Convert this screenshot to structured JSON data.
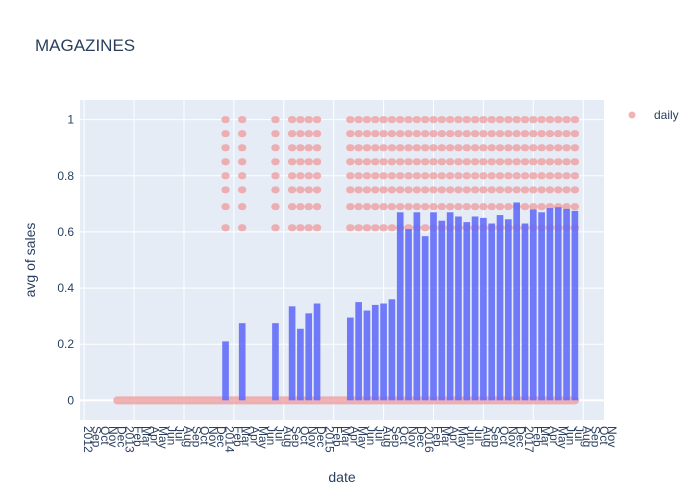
{
  "chart_data": {
    "type": "bar",
    "title": "MAGAZINES",
    "xlabel": "date",
    "ylabel": "avg of sales",
    "ylim": [
      -0.07,
      1.07
    ],
    "yticks": [
      0,
      0.2,
      0.4,
      0.6,
      0.8,
      1
    ],
    "ytick_labels": [
      "0",
      "0.2",
      "0.4",
      "0.6",
      "0.8",
      "1"
    ],
    "xlim_month_index": [
      -4.5,
      58.5
    ],
    "x_tick_labels": [
      "2012",
      "Sep",
      "Oct",
      "Nov",
      "Dec",
      "2013",
      "Feb",
      "Mar",
      "Apr",
      "May",
      "Jun",
      "Jul",
      "Aug",
      "Sep",
      "Oct",
      "Nov",
      "Dec",
      "2014",
      "Feb",
      "Mar",
      "Apr",
      "May",
      "Jun",
      "Jul",
      "Aug",
      "Sep",
      "Oct",
      "Nov",
      "Dec",
      "2015",
      "Feb",
      "Mar",
      "Apr",
      "May",
      "Jun",
      "Jul",
      "Aug",
      "Sep",
      "Oct",
      "Nov",
      "Dec",
      "2016",
      "Feb",
      "Mar",
      "Apr",
      "May",
      "Jun",
      "Jul",
      "Aug",
      "Sep",
      "Oct",
      "Nov",
      "Dec",
      "2017",
      "Feb",
      "Mar",
      "Apr",
      "May",
      "Jun",
      "Jul",
      "Aug",
      "Sep",
      "Oct",
      "Nov"
    ],
    "legend": {
      "position": "right",
      "entries": [
        "daily"
      ]
    },
    "colors": {
      "bar": "#636efa",
      "daily": "#ef9a9a",
      "plot_bg": "#e5ecf6",
      "grid": "#ffffff",
      "text": "#2a3f5f"
    },
    "monthly_bars": {
      "months": [
        "2013-01",
        "2013-02",
        "2013-03",
        "2013-04",
        "2013-05",
        "2013-06",
        "2013-07",
        "2013-08",
        "2013-09",
        "2013-10",
        "2013-11",
        "2013-12",
        "2014-01",
        "2014-02",
        "2014-03",
        "2014-04",
        "2014-05",
        "2014-06",
        "2014-07",
        "2014-08",
        "2014-09",
        "2014-10",
        "2014-11",
        "2014-12",
        "2015-01",
        "2015-02",
        "2015-03",
        "2015-04",
        "2015-05",
        "2015-06",
        "2015-07",
        "2015-08",
        "2015-09",
        "2015-10",
        "2015-11",
        "2015-12",
        "2016-01",
        "2016-02",
        "2016-03",
        "2016-04",
        "2016-05",
        "2016-06",
        "2016-07",
        "2016-08",
        "2016-09",
        "2016-10",
        "2016-11",
        "2016-12",
        "2017-01",
        "2017-02",
        "2017-03",
        "2017-04",
        "2017-05",
        "2017-06",
        "2017-07",
        "2017-08"
      ],
      "values": [
        0,
        0,
        0,
        0,
        0,
        0,
        0,
        0,
        0,
        0,
        0,
        0,
        0,
        0.21,
        0,
        0.275,
        0,
        0,
        0,
        0.275,
        0,
        0.335,
        0.255,
        0.31,
        0.345,
        0,
        0,
        0,
        0.295,
        0.35,
        0.32,
        0.34,
        0.345,
        0.36,
        0.67,
        0.61,
        0.67,
        0.585,
        0.67,
        0.64,
        0.67,
        0.655,
        0.635,
        0.655,
        0.65,
        0.63,
        0.66,
        0.645,
        0.705,
        0.63,
        0.68,
        0.67,
        0.685,
        0.688,
        0.682,
        0.675
      ]
    },
    "daily_series": {
      "name": "daily",
      "levels": [
        0,
        0.615,
        0.69,
        0.75,
        0.8,
        0.85,
        0.9,
        0.95,
        1.0
      ],
      "active_months": [
        "2014-02",
        "2014-04",
        "2014-08",
        "2014-10",
        "2014-11",
        "2014-12",
        "2015-01",
        "2015-05",
        "2015-06",
        "2015-07",
        "2015-08",
        "2015-09",
        "2015-10",
        "2015-11",
        "2015-12",
        "2016-01",
        "2016-02",
        "2016-03",
        "2016-04",
        "2016-05",
        "2016-06",
        "2016-07",
        "2016-08",
        "2016-09",
        "2016-10",
        "2016-11",
        "2016-12",
        "2017-01",
        "2017-02",
        "2017-03",
        "2017-04",
        "2017-05",
        "2017-06",
        "2017-07",
        "2017-08"
      ],
      "zero_range": [
        "2013-01",
        "2017-08"
      ]
    }
  }
}
